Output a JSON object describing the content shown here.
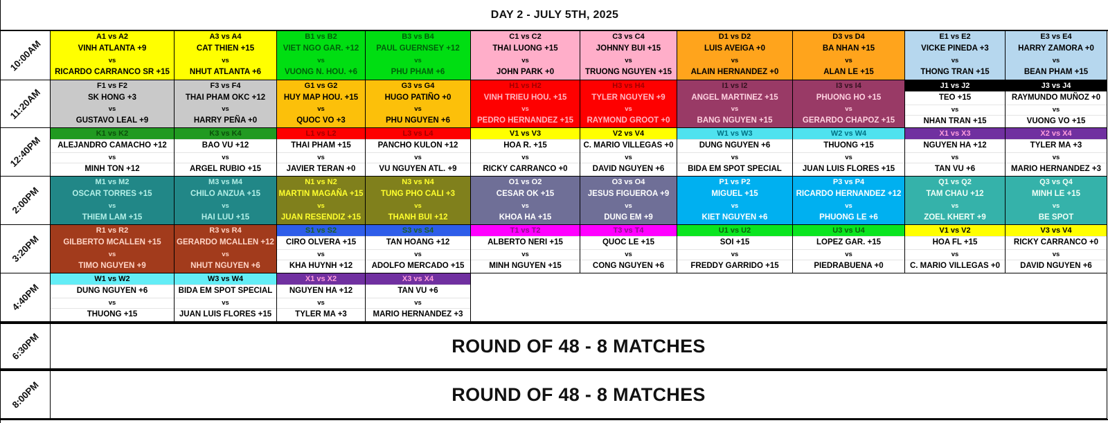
{
  "title": "DAY 2 - JULY 5TH, 2025",
  "vs_label": "vs",
  "banner_rows_label": "ROUND OF 48 - 8 MATCHES",
  "palette": {
    "yellow": {
      "bg": "#ffff00",
      "hbg": "#ffff00",
      "tc": "#000000",
      "htc": "#000000"
    },
    "green": {
      "bg": "#00de12",
      "hbg": "#00de12",
      "tc": "#00600a",
      "htc": "#00600a"
    },
    "pink": {
      "bg": "#ffaec9",
      "hbg": "#ffaec9",
      "tc": "#000000",
      "htc": "#000000"
    },
    "orange": {
      "bg": "#ffa41c",
      "hbg": "#ffa41c",
      "tc": "#000000",
      "htc": "#000000"
    },
    "lightblue": {
      "bg": "#b6d7ee",
      "hbg": "#b6d7ee",
      "tc": "#000000",
      "htc": "#000000"
    },
    "silver": {
      "bg": "#c9c9c9",
      "hbg": "#c9c9c9",
      "tc": "#000000",
      "htc": "#000000"
    },
    "gold": {
      "bg": "#fcc00a",
      "hbg": "#fcc00a",
      "tc": "#000000",
      "htc": "#000000"
    },
    "red": {
      "bg": "#fe0000",
      "hbg": "#fe0000",
      "tc": "#ffb6c1",
      "htc": "#9e0000"
    },
    "mauve": {
      "bg": "#993a66",
      "hbg": "#993a66",
      "tc": "#ffd2e0",
      "htc": "#33111f"
    },
    "black_strip": {
      "bg": "#ffffff",
      "hbg": "#000000",
      "tc": "#000000",
      "htc": "#ffffff"
    },
    "green_strip": {
      "bg": "#ffffff",
      "hbg": "#219a21",
      "tc": "#000000",
      "htc": "#0b4f0b"
    },
    "red_strip": {
      "bg": "#ffffff",
      "hbg": "#fe0000",
      "tc": "#000000",
      "htc": "#a00000"
    },
    "yellow_strip": {
      "bg": "#ffffff",
      "hbg": "#ffff00",
      "tc": "#000000",
      "htc": "#000000"
    },
    "cyan_strip": {
      "bg": "#ffffff",
      "hbg": "#4fe2ef",
      "tc": "#000000",
      "htc": "#007184"
    },
    "cyan_strip2": {
      "bg": "#ffffff",
      "hbg": "#63edf6",
      "tc": "#000000",
      "htc": "#000000"
    },
    "purple_strip": {
      "bg": "#ffffff",
      "hbg": "#7030a0",
      "tc": "#000000",
      "htc": "#ff9fdc"
    },
    "blue_strip": {
      "bg": "#ffffff",
      "hbg": "#2e5de9",
      "tc": "#000000",
      "htc": "#1b5e20"
    },
    "magenta_strip": {
      "bg": "#ffffff",
      "hbg": "#ff00ff",
      "tc": "#000000",
      "htc": "#8c0d8c"
    },
    "lime_strip": {
      "bg": "#ffffff",
      "hbg": "#0ae520",
      "tc": "#000000",
      "htc": "#0b610b"
    },
    "teal": {
      "bg": "#218787",
      "hbg": "#218787",
      "tc": "#b2efe7",
      "htc": "#b2efe7"
    },
    "olive": {
      "bg": "#80801c",
      "hbg": "#80801c",
      "tc": "#ffff2e",
      "htc": "#ffff2e"
    },
    "slate": {
      "bg": "#6f6f97",
      "hbg": "#6f6f97",
      "tc": "#ffffff",
      "htc": "#ffffff"
    },
    "sky": {
      "bg": "#00b0f0",
      "hbg": "#00b0f0",
      "tc": "#ffffff",
      "htc": "#ffffff"
    },
    "turquoise": {
      "bg": "#35b2aa",
      "hbg": "#35b2aa",
      "tc": "#effff7",
      "htc": "#effff7"
    },
    "brown": {
      "bg": "#a23b1c",
      "hbg": "#a23b1c",
      "tc": "#ffd4c6",
      "htc": "#ffd4c6"
    }
  },
  "rows": [
    {
      "time": "10:00AM",
      "type": "matches",
      "cells": [
        {
          "code": "A1 vs A2",
          "p1": "VINH ATLANTA +9",
          "p2": "RICARDO CARRANCO SR +15",
          "style": "yellow"
        },
        {
          "code": "A3 vs A4",
          "p1": "CAT THIEN +15",
          "p2": "NHUT ATLANTA +6",
          "style": "yellow"
        },
        {
          "code": "B1 vs B2",
          "p1": "VIET NGO GAR. +12",
          "p2": "VUONG N. HOU. +6",
          "style": "green"
        },
        {
          "code": "B3 vs B4",
          "p1": "PAUL GUERNSEY +12",
          "p2": "PHU PHAM +6",
          "style": "green"
        },
        {
          "code": "C1 vs C2",
          "p1": "THAI LUONG +15",
          "p2": "JOHN PARK +0",
          "style": "pink"
        },
        {
          "code": "C3 vs C4",
          "p1": "JOHNNY BUI +15",
          "p2": "TRUONG NGUYEN +15",
          "style": "pink"
        },
        {
          "code": "D1 vs D2",
          "p1": "LUIS AVEIGA +0",
          "p2": "ALAIN HERNANDEZ +0",
          "style": "orange"
        },
        {
          "code": "D3 vs D4",
          "p1": "BA NHAN +15",
          "p2": "ALAN LE +15",
          "style": "orange"
        },
        {
          "code": "E1 vs E2",
          "p1": "VICKE PINEDA +3",
          "p2": "THONG TRAN +15",
          "style": "lightblue"
        },
        {
          "code": "E3 vs E4",
          "p1": "HARRY ZAMORA +0",
          "p2": "BEAN PHAM +15",
          "style": "lightblue"
        }
      ]
    },
    {
      "time": "11:20AM",
      "type": "matches",
      "cells": [
        {
          "code": "F1 vs F2",
          "p1": "SK HONG +3",
          "p2": "GUSTAVO LEAL +9",
          "style": "silver"
        },
        {
          "code": "F3 vs F4",
          "p1": "THAI PHAM OKC +12",
          "p2": "HARRY PEÑA +0",
          "style": "silver"
        },
        {
          "code": "G1 vs G2",
          "p1": "HUY MAP HOU. +15",
          "p2": "QUOC VO +3",
          "style": "gold"
        },
        {
          "code": "G3 vs G4",
          "p1": "HUGO PATIÑO +0",
          "p2": "PHU NGUYEN +6",
          "style": "gold"
        },
        {
          "code": "H1 vs H2",
          "p1": "VINH TRIEU HOU. +15",
          "p2": "PEDRO HERNANDEZ +15",
          "style": "red"
        },
        {
          "code": "H3 vs H4",
          "p1": "TYLER NGUYEN +9",
          "p2": "RAYMOND GROOT +0",
          "style": "red"
        },
        {
          "code": "I1 vs I2",
          "p1": "ANGEL MARTINEZ +15",
          "p2": "BANG NGUYEN +15",
          "style": "mauve"
        },
        {
          "code": "I3 vs I4",
          "p1": "PHUONG HO +15",
          "p2": "GERARDO CHAPOZ +15",
          "style": "mauve"
        },
        {
          "code": "J1 vs J2",
          "p1": "TEO +15",
          "p2": "NHAN TRAN +15",
          "style": "black_strip"
        },
        {
          "code": "J3 vs J4",
          "p1": "RAYMUNDO MUÑOZ +0",
          "p2": "VUONG VO +15",
          "style": "black_strip"
        }
      ]
    },
    {
      "time": "12:40PM",
      "type": "matches",
      "cells": [
        {
          "code": "K1 vs K2",
          "p1": "ALEJANDRO CAMACHO +12",
          "p2": "MINH TON +12",
          "style": "green_strip"
        },
        {
          "code": "K3 vs K4",
          "p1": "BAO VU +12",
          "p2": "ARGEL RUBIO +15",
          "style": "green_strip"
        },
        {
          "code": "L1 vs L2",
          "p1": "THAI PHAM +15",
          "p2": "JAVIER TERAN +0",
          "style": "red_strip"
        },
        {
          "code": "L3 vs L4",
          "p1": "PANCHO KULON +12",
          "p2": "VU NGUYEN ATL. +9",
          "style": "red_strip"
        },
        {
          "code": "V1 vs V3",
          "p1": "HOA R. +15",
          "p2": "RICKY CARRANCO +0",
          "style": "yellow_strip"
        },
        {
          "code": "V2 vs V4",
          "p1": "C. MARIO VILLEGAS +0",
          "p2": "DAVID NGUYEN +6",
          "style": "yellow_strip"
        },
        {
          "code": "W1 vs W3",
          "p1": "DUNG NGUYEN +6",
          "p2": "BIDA EM SPOT SPECIAL",
          "style": "cyan_strip"
        },
        {
          "code": "W2 vs W4",
          "p1": "THUONG +15",
          "p2": "JUAN LUIS FLORES +15",
          "style": "cyan_strip"
        },
        {
          "code": "X1 vs X3",
          "p1": "NGUYEN HA +12",
          "p2": "TAN VU +6",
          "style": "purple_strip"
        },
        {
          "code": "X2 vs X4",
          "p1": "TYLER MA +3",
          "p2": "MARIO HERNANDEZ +3",
          "style": "purple_strip"
        }
      ]
    },
    {
      "time": "2:00PM",
      "type": "matches",
      "cells": [
        {
          "code": "M1 vs M2",
          "p1": "OSCAR TORRES +15",
          "p2": "THIEM LAM +15",
          "style": "teal"
        },
        {
          "code": "M3 vs M4",
          "p1": "CHILO ANZUA +15",
          "p2": "HAI LUU +15",
          "style": "teal"
        },
        {
          "code": "N1 vs N2",
          "p1": "MARTIN MAGAÑA +15",
          "p2": "JUAN RESENDIZ +15",
          "style": "olive"
        },
        {
          "code": "N3 vs N4",
          "p1": "TUNG PHO CALI +3",
          "p2": "THANH BUI +12",
          "style": "olive"
        },
        {
          "code": "O1 vs O2",
          "p1": "CESAR OK +15",
          "p2": "KHOA HA +15",
          "style": "slate"
        },
        {
          "code": "O3 vs O4",
          "p1": "JESUS FIGUEROA +9",
          "p2": "DUNG EM +9",
          "style": "slate"
        },
        {
          "code": "P1 vs P2",
          "p1": "MIGUEL +15",
          "p2": "KIET NGUYEN +6",
          "style": "sky"
        },
        {
          "code": "P3 vs P4",
          "p1": "RICARDO HERNANDEZ +12",
          "p2": "PHUONG LE +6",
          "style": "sky"
        },
        {
          "code": "Q1 vs Q2",
          "p1": "TAM CHAU +12",
          "p2": "ZOEL KHERT +9",
          "style": "turquoise"
        },
        {
          "code": "Q3 vs Q4",
          "p1": "MINH LE +15",
          "p2": "BE SPOT",
          "style": "turquoise"
        }
      ]
    },
    {
      "time": "3:20PM",
      "type": "matches",
      "cells": [
        {
          "code": "R1 vs R2",
          "p1": "GILBERTO MCALLEN +15",
          "p2": "TIMO NGUYEN +9",
          "style": "brown"
        },
        {
          "code": "R3 vs R4",
          "p1": "GERARDO MCALLEN +12",
          "p2": "NHUT NGUYEN +6",
          "style": "brown"
        },
        {
          "code": "S1 vs S2",
          "p1": "CIRO OLVERA +15",
          "p2": "KHA HUYNH +12",
          "style": "blue_strip"
        },
        {
          "code": "S3 vs S4",
          "p1": "TAN HOANG +12",
          "p2": "ADOLFO MERCADO +15",
          "style": "blue_strip"
        },
        {
          "code": "T1 vs T2",
          "p1": "ALBERTO NERI +15",
          "p2": "MINH NGUYEN +15",
          "style": "magenta_strip"
        },
        {
          "code": "T3 vs T4",
          "p1": "QUOC LE +15",
          "p2": "CONG NGUYEN +6",
          "style": "magenta_strip"
        },
        {
          "code": "U1 vs U2",
          "p1": "SOI +15",
          "p2": "FREDDY GARRIDO +15",
          "style": "lime_strip"
        },
        {
          "code": "U3 vs U4",
          "p1": "LOPEZ GAR. +15",
          "p2": "PIEDRABUENA +0",
          "style": "lime_strip"
        },
        {
          "code": "V1 vs V2",
          "p1": "HOA FL +15",
          "p2": "C. MARIO VILLEGAS +0",
          "style": "yellow_strip"
        },
        {
          "code": "V3 vs V4",
          "p1": "RICKY CARRANCO +0",
          "p2": "DAVID NGUYEN +6",
          "style": "yellow_strip"
        }
      ]
    },
    {
      "time": "4:40PM",
      "type": "matches",
      "cells": [
        {
          "code": "W1 vs W2",
          "p1": "DUNG NGUYEN +6",
          "p2": "THUONG +15",
          "style": "cyan_strip2"
        },
        {
          "code": "W3 vs W4",
          "p1": "BIDA EM SPOT SPECIAL",
          "p2": "JUAN LUIS FLORES +15",
          "style": "cyan_strip2"
        },
        {
          "code": "X1 vs X2",
          "p1": "NGUYEN HA +12",
          "p2": "TYLER MA +3",
          "style": "purple_strip"
        },
        {
          "code": "X3 vs X4",
          "p1": "TAN VU +6",
          "p2": "MARIO HERNANDEZ +3",
          "style": "purple_strip"
        },
        null,
        null,
        null,
        null,
        null,
        null
      ]
    },
    {
      "time": "6:30PM",
      "type": "banner",
      "banner": "ROUND OF 48 - 8 MATCHES"
    },
    {
      "time": "8:00PM",
      "type": "banner",
      "banner": "ROUND OF 48 - 8 MATCHES"
    }
  ]
}
